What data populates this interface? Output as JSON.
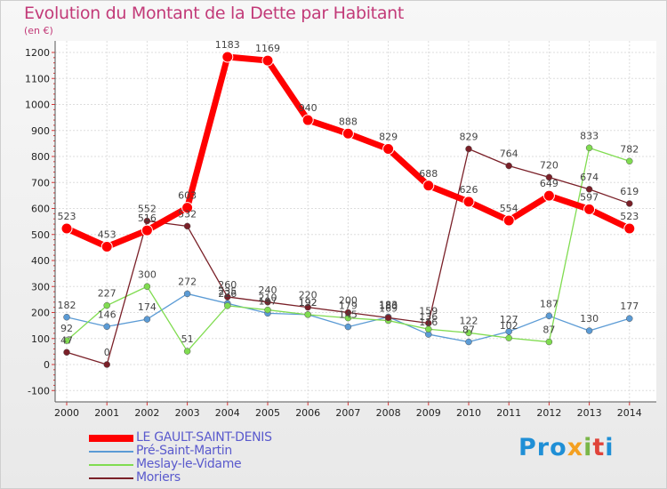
{
  "title": "Evolution du Montant de la Dette par Habitant",
  "unit": "(en €)",
  "logo": {
    "text": "Proxiti",
    "letters": [
      "P",
      "r",
      "o",
      "x",
      "i",
      "t",
      "i"
    ],
    "colors": [
      "#1f8fd6",
      "#1f8fd6",
      "#1f8fd6",
      "#f4a020",
      "#7ab648",
      "#e0433a",
      "#1f8fd6"
    ]
  },
  "chart_data": {
    "type": "line",
    "title": "Evolution du Montant de la Dette par Habitant",
    "ylabel": "(en €)",
    "xlabel": "",
    "ylim": [
      -100,
      1200
    ],
    "yticks": [
      "-100",
      "0",
      "100",
      "200",
      "300",
      "400",
      "500",
      "600",
      "700",
      "800",
      "900",
      "1000",
      "1100",
      "1200"
    ],
    "categories": [
      "2000",
      "2001",
      "2002",
      "2003",
      "2004",
      "2005",
      "2006",
      "2007",
      "2008",
      "2009",
      "2010",
      "2011",
      "2012",
      "2013",
      "2014"
    ],
    "series": [
      {
        "name": "LE GAULT-SAINT-DENIS",
        "color": "#ff0000",
        "values": [
          523,
          453,
          516,
          603,
          1183,
          1169,
          940,
          888,
          829,
          688,
          626,
          554,
          649,
          597,
          523
        ]
      },
      {
        "name": "Pré-Saint-Martin",
        "color": "#5b9bd5",
        "values": [
          182,
          146,
          174,
          272,
          235,
          197,
          192,
          145,
          183,
          116,
          87,
          127,
          187,
          130,
          177
        ]
      },
      {
        "name": "Meslay-le-Vidame",
        "color": "#80dc50",
        "values": [
          92,
          227,
          300,
          51,
          226,
          210,
          192,
          179,
          169,
          136,
          122,
          102,
          87,
          833,
          782
        ]
      },
      {
        "name": "Moriers",
        "color": "#7a2028",
        "values": [
          47,
          0,
          552,
          532,
          260,
          240,
          220,
          200,
          180,
          159,
          829,
          764,
          720,
          674,
          619
        ]
      }
    ]
  }
}
